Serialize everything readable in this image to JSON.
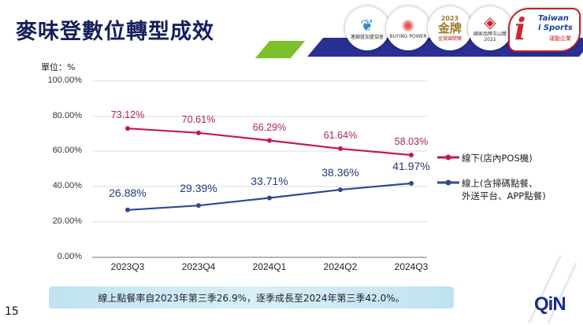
{
  "header": {
    "title": "麥味登數位轉型成效",
    "badges": [
      {
        "name": "digital-transformation-award",
        "text": "連鎖暨加盟協會"
      },
      {
        "name": "buying-power-award",
        "text": "BUYING POWER"
      },
      {
        "name": "gold-award-2023",
        "year": "2023",
        "text": "金牌",
        "sub": "金賞國際獎"
      },
      {
        "name": "national-brand-yushan-award",
        "text": "國家品牌玉山獎",
        "year": "2022"
      },
      {
        "name": "taiwan-i-sports",
        "line1": "Taiwan",
        "line2": "i Sports",
        "line3": "運動企業"
      }
    ]
  },
  "chart_data": {
    "type": "line",
    "title": "",
    "unit_label": "單位：%",
    "xlabel": "",
    "ylabel": "單位：%",
    "ylim": [
      0,
      100
    ],
    "y_ticks": [
      "100.00%",
      "80.00%",
      "60.00%",
      "40.00%",
      "20.00%",
      "0.00%"
    ],
    "categories": [
      "2023Q3",
      "2023Q4",
      "2024Q1",
      "2024Q2",
      "2024Q3"
    ],
    "series": [
      {
        "name": "線下(店內POS機)",
        "color": "#c2185b",
        "values": [
          73.12,
          70.61,
          66.29,
          61.64,
          58.03
        ],
        "labels": [
          "73.12%",
          "70.61%",
          "66.29%",
          "61.64%",
          "58.03%"
        ]
      },
      {
        "name": "線上(含掃碼點餐、外送平台、APP點餐)",
        "name_line1": "線上(含掃碼點餐、",
        "name_line2": "外送平台、APP點餐)",
        "color": "#2f4b8f",
        "values": [
          26.88,
          29.39,
          33.71,
          38.36,
          41.97
        ],
        "labels": [
          "26.88%",
          "29.39%",
          "33.71%",
          "38.36%",
          "41.97%"
        ]
      }
    ],
    "grid": true,
    "legend_position": "right"
  },
  "footer": {
    "note": "線上點餐率自2023年第三季26.9%，逐季成長至2024年第三季42.0%。",
    "page_number": "15",
    "logo_text": "QiN"
  }
}
